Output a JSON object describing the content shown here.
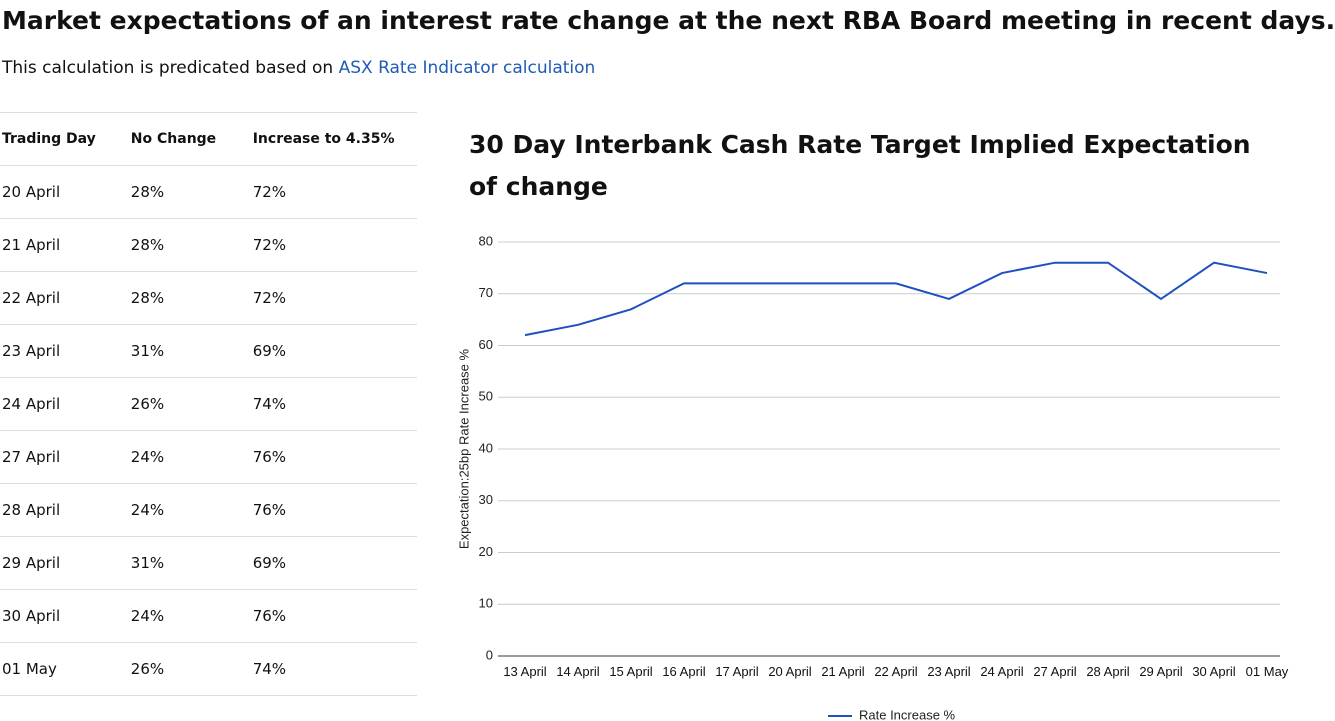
{
  "header": {
    "title": "Market expectations of an interest rate change at the next RBA Board meeting in recent days.",
    "subtitle": "This calculation is predicated based on",
    "link": "ASX Rate Indicator calculation"
  },
  "table": {
    "header": [
      "Trading Day",
      "No Change",
      "Increase to 4.35%"
    ],
    "rows": [
      [
        "20 April",
        "28%",
        "72%"
      ],
      [
        "21 April",
        "28%",
        "72%"
      ],
      [
        "22 April",
        "28%",
        "72%"
      ],
      [
        "23 April",
        "31%",
        "69%"
      ],
      [
        "24 April",
        "26%",
        "74%"
      ],
      [
        "27 April",
        "24%",
        "76%"
      ],
      [
        "28 April",
        "24%",
        "76%"
      ],
      [
        "29 April",
        "31%",
        "69%"
      ],
      [
        "30 April",
        "24%",
        "76%"
      ],
      [
        "01 May",
        "26%",
        "74%"
      ]
    ]
  },
  "chart_data": {
    "type": "line",
    "title": "30 Day Interbank Cash Rate Target Implied Expectation of change",
    "y_label": "Expectation:25bp Rate Increase %",
    "categories": [
      "13 April",
      "14 April",
      "15 April",
      "16 April",
      "17 April",
      "20 April",
      "21 April",
      "22 April",
      "23 April",
      "24 April",
      "27 April",
      "28 April",
      "29 April",
      "30 April",
      "01 May"
    ],
    "series": [
      {
        "name": "Rate Increase %",
        "color": "#1f4fc1",
        "values": [
          62,
          64,
          67,
          72,
          72,
          72,
          72,
          72,
          69,
          74,
          76,
          76,
          69,
          76,
          74
        ]
      }
    ],
    "ylim": [
      0,
      80
    ],
    "yticks": [
      0,
      10,
      20,
      30,
      40,
      50,
      60,
      70,
      80
    ],
    "grid": true,
    "legend": "bottom"
  }
}
